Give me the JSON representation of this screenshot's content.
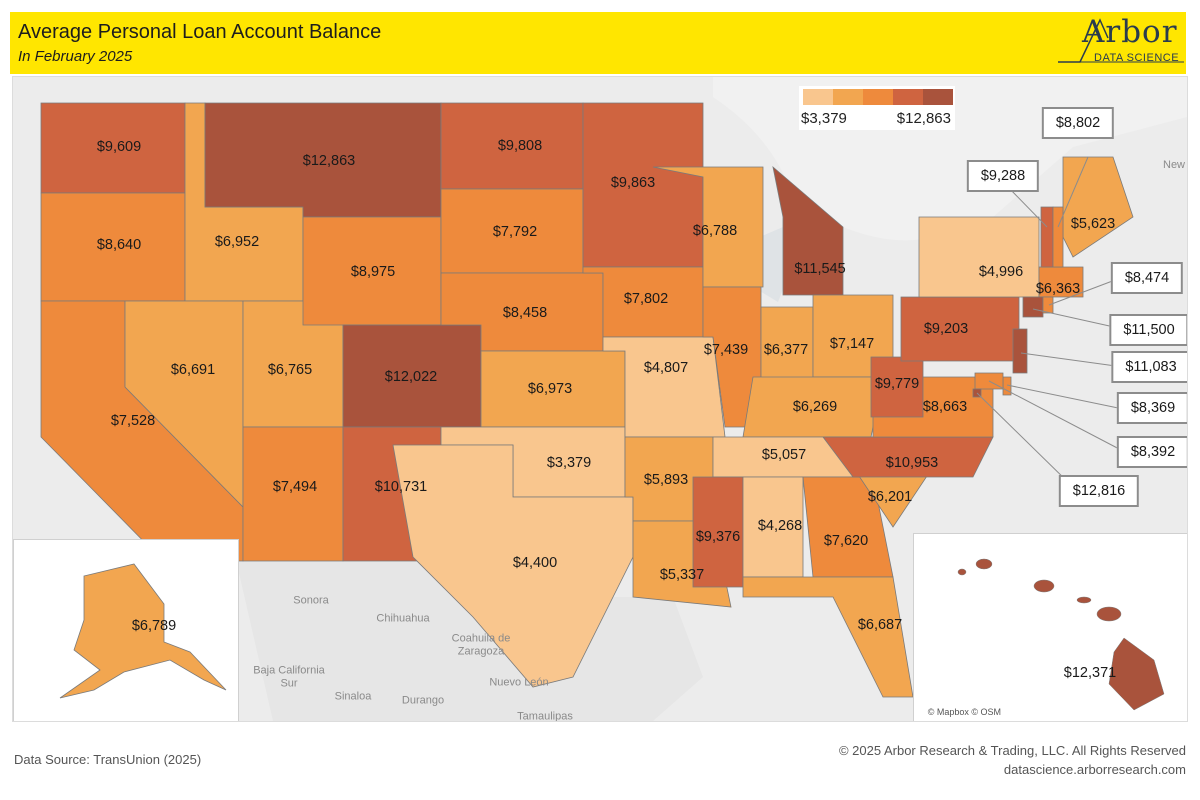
{
  "header": {
    "title": "Average Personal Loan Account Balance",
    "subtitle": "In February 2025",
    "logo_word": "Arbor",
    "logo_sub": "DATA SCIENCE"
  },
  "legend": {
    "min_label": "$3,379",
    "max_label": "$12,863",
    "colors": [
      "#f9c68e",
      "#f2a650",
      "#ee8a3c",
      "#cf6440",
      "#a9533c"
    ]
  },
  "map_labels": {
    "mexico": [
      "Sonora",
      "Chihuahua",
      "Coahuila de Zaragoza",
      "Baja California Sur",
      "Sinaloa",
      "Durango",
      "Nuevo León",
      "Tamaulipas"
    ],
    "canada": "New Brunswick",
    "credit": "© Mapbox © OSM"
  },
  "states": [
    {
      "id": "WA",
      "value": "$9,609"
    },
    {
      "id": "OR",
      "value": "$8,640"
    },
    {
      "id": "CA",
      "value": "$7,528"
    },
    {
      "id": "ID",
      "value": "$6,952"
    },
    {
      "id": "NV",
      "value": "$6,691"
    },
    {
      "id": "UT",
      "value": "$6,765"
    },
    {
      "id": "AZ",
      "value": "$7,494"
    },
    {
      "id": "MT",
      "value": "$12,863"
    },
    {
      "id": "WY",
      "value": "$8,975"
    },
    {
      "id": "CO",
      "value": "$12,022"
    },
    {
      "id": "NM",
      "value": "$10,731"
    },
    {
      "id": "ND",
      "value": "$9,808"
    },
    {
      "id": "SD",
      "value": "$7,792"
    },
    {
      "id": "NE",
      "value": "$8,458"
    },
    {
      "id": "KS",
      "value": "$6,973"
    },
    {
      "id": "OK",
      "value": "$3,379"
    },
    {
      "id": "TX",
      "value": "$4,400"
    },
    {
      "id": "MN",
      "value": "$9,863"
    },
    {
      "id": "IA",
      "value": "$7,802"
    },
    {
      "id": "MO",
      "value": "$4,807"
    },
    {
      "id": "AR",
      "value": "$5,893"
    },
    {
      "id": "LA",
      "value": "$5,337"
    },
    {
      "id": "WI",
      "value": "$6,788"
    },
    {
      "id": "IL",
      "value": "$7,439"
    },
    {
      "id": "MI",
      "value": "$11,545"
    },
    {
      "id": "IN",
      "value": "$6,377"
    },
    {
      "id": "OH",
      "value": "$7,147"
    },
    {
      "id": "KY",
      "value": "$6,269"
    },
    {
      "id": "TN",
      "value": "$5,057"
    },
    {
      "id": "MS",
      "value": "$9,376"
    },
    {
      "id": "AL",
      "value": "$4,268"
    },
    {
      "id": "GA",
      "value": "$7,620"
    },
    {
      "id": "FL",
      "value": "$6,687"
    },
    {
      "id": "SC",
      "value": "$6,201"
    },
    {
      "id": "NC",
      "value": "$10,953"
    },
    {
      "id": "VA",
      "value": "$8,663"
    },
    {
      "id": "WV",
      "value": "$9,779"
    },
    {
      "id": "PA",
      "value": "$9,203"
    },
    {
      "id": "NY",
      "value": "$4,996"
    },
    {
      "id": "ME",
      "value": "$5,623"
    },
    {
      "id": "MA",
      "value": "$6,363"
    },
    {
      "id": "AK",
      "value": "$6,789"
    },
    {
      "id": "HI",
      "value": "$12,371"
    }
  ],
  "callouts": [
    {
      "id": "VT",
      "value": "$9,288"
    },
    {
      "id": "NH",
      "value": "$8,802"
    },
    {
      "id": "RI",
      "value": "$8,474"
    },
    {
      "id": "CT",
      "value": "$11,500"
    },
    {
      "id": "NJ",
      "value": "$11,083"
    },
    {
      "id": "DE",
      "value": "$8,369"
    },
    {
      "id": "MD",
      "value": "$8,392"
    },
    {
      "id": "DC",
      "value": "$12,816"
    }
  ],
  "footer": {
    "source": "Data Source: TransUnion (2025)",
    "copyright": "© 2025 Arbor Research & Trading, LLC. All Rights Reserved",
    "url": "datascience.arborresearch.com"
  }
}
